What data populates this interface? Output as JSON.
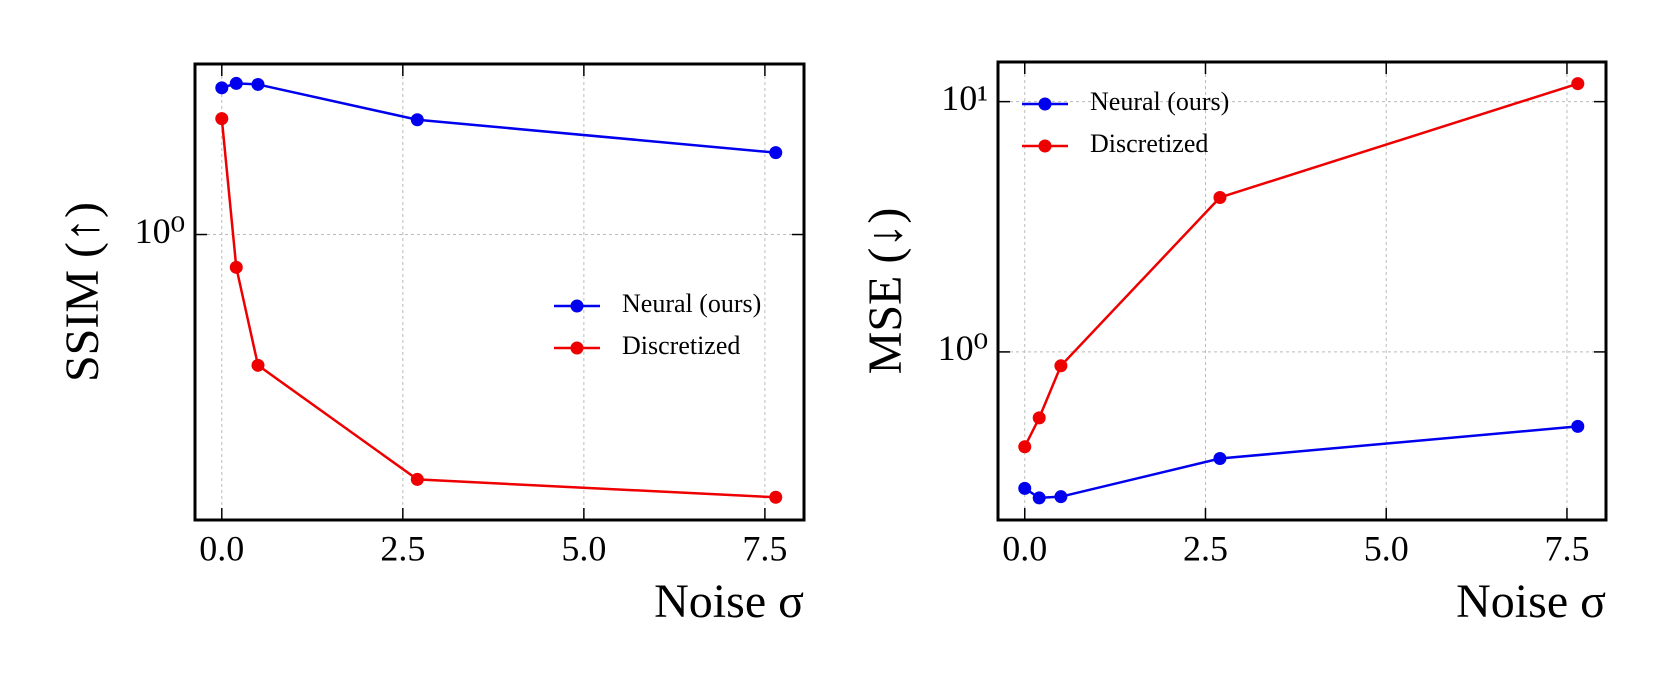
{
  "chart_data": [
    {
      "type": "line",
      "ylabel": "SSIM (↑)",
      "xlabel": "Noise σ",
      "x": [
        0,
        0.2,
        0.5,
        2.7,
        7.65
      ],
      "series": [
        {
          "name": "Neural (ours)",
          "color": "#0000ee",
          "values": [
            1.466,
            1.483,
            1.479,
            1.349,
            1.238
          ]
        },
        {
          "name": "Discretized",
          "color": "#ee0000",
          "values": [
            1.353,
            0.918,
            0.711,
            0.528,
            0.504
          ]
        }
      ],
      "xlim": [
        -0.37,
        8.04
      ],
      "xticks": [
        {
          "value": 0,
          "label": "0.0"
        },
        2.5,
        {
          "value": 5,
          "label": "5.0"
        },
        7.5
      ],
      "ylim": [
        0.475,
        1.56
      ],
      "yticks": [
        {
          "value": 1,
          "label": "10⁰"
        }
      ],
      "ylog": true,
      "grid": true,
      "legend": "center right"
    },
    {
      "type": "line",
      "ylabel": "MSE (↓)",
      "xlabel": "Noise σ",
      "x": [
        0,
        0.2,
        0.5,
        2.7,
        7.65
      ],
      "series": [
        {
          "name": "Neural (ours)",
          "color": "#0000ee",
          "values": [
            0.285,
            0.261,
            0.264,
            0.375,
            0.504
          ]
        },
        {
          "name": "Discretized",
          "color": "#ee0000",
          "values": [
            0.418,
            0.545,
            0.88,
            4.14,
            11.8
          ]
        }
      ],
      "xlim": [
        -0.37,
        8.04
      ],
      "xticks": [
        {
          "value": 0,
          "label": "0.0"
        },
        2.5,
        {
          "value": 5,
          "label": "5.0"
        },
        7.5
      ],
      "ylim": [
        0.213,
        14.4
      ],
      "yticks": [
        {
          "value": 1,
          "label": "10⁰"
        },
        {
          "value": 10,
          "label": "10¹"
        }
      ],
      "ylog": true,
      "grid": true,
      "legend": "upper left"
    }
  ]
}
